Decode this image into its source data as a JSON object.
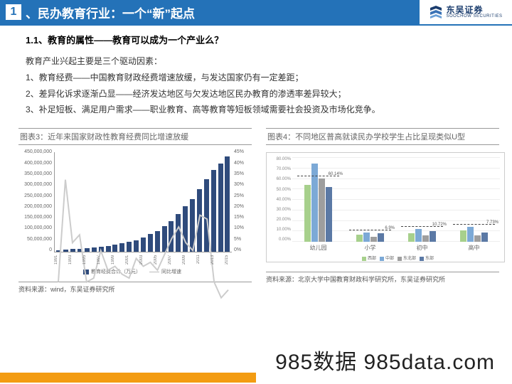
{
  "header": {
    "number": "1",
    "title": "、民办教育行业：一个“新”起点",
    "logo_cn": "东吴证券",
    "logo_en": "SOOCHOW SECURITIES"
  },
  "subheader": "1.1、教育的属性——教育可以成为一个产业么？",
  "lines": [
    "教育产业兴起主要是三个驱动因素：",
    "1、教育经费——中国教育财政经费增速放缓，与发达国家仍有一定差距；",
    "2、差异化诉求逐渐凸显——经济发达地区与欠发达地区民办教育的渗透率差异较大；",
    "3、补足短板、满足用户需求——职业教育、高等教育等短板领域需要社会投资及市场化竞争。"
  ],
  "chart3": {
    "title": "图表3：近年来国家财政性教育经费同比增速放缓",
    "type": "bar+line",
    "y_left": {
      "max": 450000000,
      "step": 50000000,
      "labels": [
        "0",
        "50,000,000",
        "100,000,000",
        "150,000,000",
        "200,000,000",
        "250,000,000",
        "300,000,000",
        "350,000,000",
        "400,000,000",
        "450,000,000"
      ]
    },
    "y_right": {
      "max": 45,
      "step": 5,
      "labels": [
        "0%",
        "5%",
        "10%",
        "15%",
        "20%",
        "25%",
        "30%",
        "35%",
        "40%",
        "45%"
      ]
    },
    "years": [
      "1991",
      "1993",
      "1995",
      "1997",
      "1999",
      "2001",
      "2003",
      "2005",
      "2007",
      "2009",
      "2011",
      "2013",
      "2015"
    ],
    "bar_values": [
      7,
      9,
      12,
      15,
      17,
      20,
      23,
      27,
      33,
      38,
      45,
      53,
      65,
      80,
      95,
      115,
      140,
      170,
      205,
      240,
      285,
      330,
      370,
      400,
      430
    ],
    "line_values": [
      12,
      38,
      22,
      24,
      12,
      13,
      20,
      15,
      16,
      14,
      13,
      18,
      16,
      17,
      15,
      19,
      23,
      26,
      22,
      20,
      29,
      28,
      12,
      8,
      10
    ],
    "bar_color": "#2f4b7c",
    "line_color": "#cccccc",
    "legend_bar": "教育经费合计（万元）",
    "legend_line": "同比增速",
    "source": "资料来源：wind，东吴证券研究所"
  },
  "chart4": {
    "title": "图表4：不同地区普高就读民办学校学生占比呈现类似U型",
    "type": "grouped-bar",
    "y": {
      "max": 80,
      "step": 10,
      "labels": [
        "0.00%",
        "10.00%",
        "20.00%",
        "30.00%",
        "40.00%",
        "50.00%",
        "60.00%",
        "70.00%",
        "80.00%"
      ]
    },
    "categories": [
      "幼儿园",
      "小学",
      "初中",
      "高中"
    ],
    "series": [
      {
        "name": "西部",
        "color": "#a7d08c",
        "values": [
          54,
          7,
          8,
          11
        ]
      },
      {
        "name": "中部",
        "color": "#7ca9d6",
        "values": [
          74,
          9,
          12,
          14
        ]
      },
      {
        "name": "东北部",
        "color": "#9e9e9e",
        "values": [
          60,
          5,
          6,
          6
        ]
      },
      {
        "name": "东部",
        "color": "#5b79a5",
        "values": [
          52,
          8,
          10,
          9
        ]
      }
    ],
    "annotations": [
      {
        "text": "60.14%",
        "group": 0,
        "y": 62
      },
      {
        "text": "6.9%",
        "group": 1,
        "y": 11
      },
      {
        "text": "10.72%",
        "group": 2,
        "y": 14
      },
      {
        "text": "7.73%",
        "group": 3,
        "y": 16
      }
    ],
    "source": "资料来源：北京大学中国教育财政科学研究所，东吴证券研究所"
  },
  "watermark": "985数据 985data.com"
}
